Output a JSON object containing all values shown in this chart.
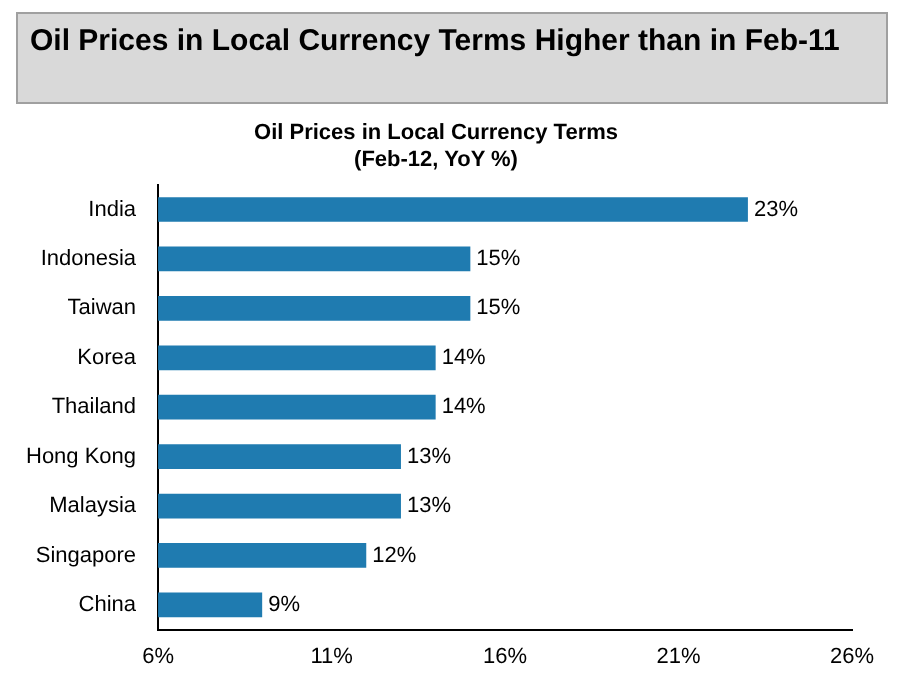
{
  "chart_data": {
    "type": "bar",
    "orientation": "horizontal",
    "title": "Oil Prices in Local Currency Terms Higher than in Feb-11",
    "subtitle": "Oil Prices in Local Currency Terms\n(Feb-12, YoY %)",
    "categories": [
      "India",
      "Indonesia",
      "Taiwan",
      "Korea",
      "Thailand",
      "Hong Kong",
      "Malaysia",
      "Singapore",
      "China"
    ],
    "values": [
      23,
      15,
      15,
      14,
      14,
      13,
      13,
      12,
      9
    ],
    "value_labels": [
      "23%",
      "15%",
      "15%",
      "14%",
      "14%",
      "13%",
      "13%",
      "12%",
      "9%"
    ],
    "color": "#1f7bb0",
    "xlim": [
      6,
      26
    ],
    "xticks": [
      {
        "value": 6,
        "label": "6%"
      },
      {
        "value": 11,
        "label": "11%"
      },
      {
        "value": 16,
        "label": "16%"
      },
      {
        "value": 21,
        "label": "21%"
      },
      {
        "value": 26,
        "label": "26%"
      }
    ],
    "grid": false,
    "legend": false
  }
}
